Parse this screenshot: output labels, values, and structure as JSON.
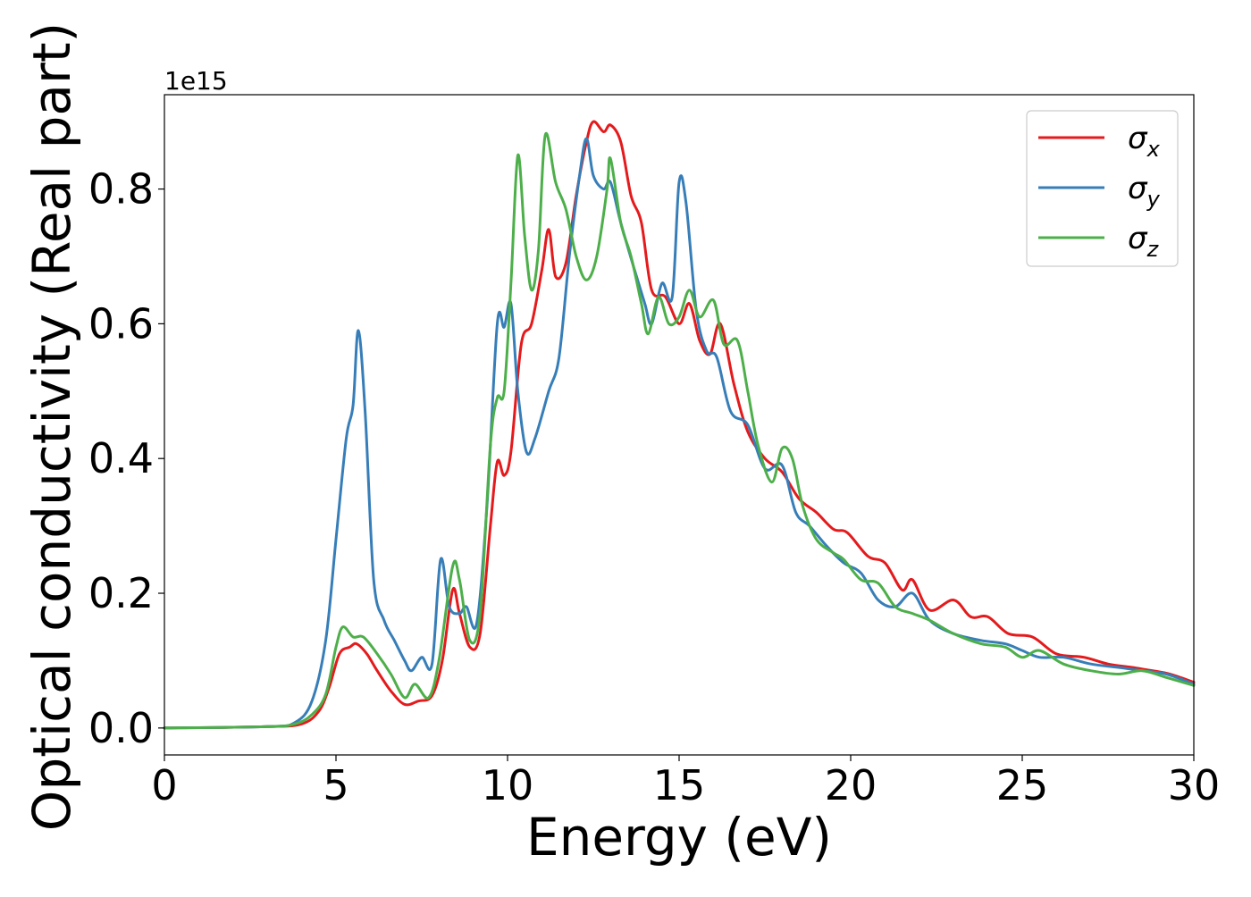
{
  "chart_data": {
    "type": "line",
    "xlabel": "Energy (eV)",
    "ylabel": "Optical conductivity (Real part)",
    "y_offset_text": "1e15",
    "xlim": [
      0,
      30
    ],
    "ylim": [
      -0.04,
      0.94
    ],
    "x_ticks": [
      0,
      5,
      10,
      15,
      20,
      25,
      30
    ],
    "x_tick_labels": [
      "0",
      "5",
      "10",
      "15",
      "20",
      "25",
      "30"
    ],
    "y_ticks": [
      0.0,
      0.2,
      0.4,
      0.6,
      0.8
    ],
    "y_tick_labels": [
      "0.0",
      "0.2",
      "0.4",
      "0.6",
      "0.8"
    ],
    "grid": false,
    "legend_position": "top-right",
    "series": [
      {
        "name": "σx",
        "symbol": "σ",
        "subscript": "x",
        "color": "#e41a1c",
        "points": [
          [
            0,
            0
          ],
          [
            3,
            0.002
          ],
          [
            4,
            0.006
          ],
          [
            4.5,
            0.025
          ],
          [
            4.8,
            0.06
          ],
          [
            5.1,
            0.11
          ],
          [
            5.4,
            0.12
          ],
          [
            5.6,
            0.125
          ],
          [
            5.9,
            0.11
          ],
          [
            6.2,
            0.085
          ],
          [
            6.6,
            0.055
          ],
          [
            7.0,
            0.035
          ],
          [
            7.4,
            0.04
          ],
          [
            7.8,
            0.048
          ],
          [
            8.1,
            0.1
          ],
          [
            8.4,
            0.205
          ],
          [
            8.6,
            0.17
          ],
          [
            8.9,
            0.12
          ],
          [
            9.2,
            0.14
          ],
          [
            9.5,
            0.3
          ],
          [
            9.7,
            0.395
          ],
          [
            9.9,
            0.375
          ],
          [
            10.1,
            0.41
          ],
          [
            10.4,
            0.57
          ],
          [
            10.7,
            0.6
          ],
          [
            11.0,
            0.68
          ],
          [
            11.2,
            0.74
          ],
          [
            11.4,
            0.67
          ],
          [
            11.7,
            0.69
          ],
          [
            12.0,
            0.79
          ],
          [
            12.3,
            0.87
          ],
          [
            12.5,
            0.9
          ],
          [
            12.8,
            0.885
          ],
          [
            13.0,
            0.895
          ],
          [
            13.3,
            0.87
          ],
          [
            13.6,
            0.79
          ],
          [
            13.9,
            0.75
          ],
          [
            14.2,
            0.65
          ],
          [
            14.6,
            0.64
          ],
          [
            15.0,
            0.6
          ],
          [
            15.3,
            0.63
          ],
          [
            15.6,
            0.575
          ],
          [
            15.9,
            0.555
          ],
          [
            16.2,
            0.6
          ],
          [
            16.6,
            0.51
          ],
          [
            17.0,
            0.44
          ],
          [
            17.5,
            0.4
          ],
          [
            18.0,
            0.38
          ],
          [
            18.5,
            0.34
          ],
          [
            19.0,
            0.32
          ],
          [
            19.5,
            0.295
          ],
          [
            19.9,
            0.29
          ],
          [
            20.5,
            0.255
          ],
          [
            21.0,
            0.245
          ],
          [
            21.5,
            0.205
          ],
          [
            21.8,
            0.22
          ],
          [
            22.3,
            0.175
          ],
          [
            23.0,
            0.19
          ],
          [
            23.5,
            0.165
          ],
          [
            24.0,
            0.165
          ],
          [
            24.6,
            0.14
          ],
          [
            25.3,
            0.135
          ],
          [
            26.0,
            0.11
          ],
          [
            26.8,
            0.105
          ],
          [
            27.5,
            0.095
          ],
          [
            28.2,
            0.09
          ],
          [
            28.8,
            0.085
          ],
          [
            29.3,
            0.08
          ],
          [
            30,
            0.068
          ]
        ]
      },
      {
        "name": "σy",
        "symbol": "σ",
        "subscript": "y",
        "color": "#377eb8",
        "points": [
          [
            0,
            0
          ],
          [
            3,
            0.002
          ],
          [
            3.8,
            0.008
          ],
          [
            4.3,
            0.04
          ],
          [
            4.7,
            0.13
          ],
          [
            5.0,
            0.28
          ],
          [
            5.3,
            0.43
          ],
          [
            5.5,
            0.48
          ],
          [
            5.65,
            0.59
          ],
          [
            5.85,
            0.47
          ],
          [
            6.1,
            0.22
          ],
          [
            6.4,
            0.16
          ],
          [
            6.7,
            0.13
          ],
          [
            7.0,
            0.1
          ],
          [
            7.2,
            0.085
          ],
          [
            7.5,
            0.105
          ],
          [
            7.8,
            0.095
          ],
          [
            8.05,
            0.25
          ],
          [
            8.3,
            0.18
          ],
          [
            8.6,
            0.17
          ],
          [
            8.8,
            0.18
          ],
          [
            9.1,
            0.155
          ],
          [
            9.4,
            0.33
          ],
          [
            9.7,
            0.6
          ],
          [
            9.9,
            0.595
          ],
          [
            10.1,
            0.63
          ],
          [
            10.3,
            0.5
          ],
          [
            10.55,
            0.41
          ],
          [
            10.8,
            0.43
          ],
          [
            11.2,
            0.5
          ],
          [
            11.5,
            0.55
          ],
          [
            11.8,
            0.7
          ],
          [
            12.1,
            0.82
          ],
          [
            12.3,
            0.875
          ],
          [
            12.5,
            0.82
          ],
          [
            12.8,
            0.8
          ],
          [
            13.0,
            0.81
          ],
          [
            13.3,
            0.75
          ],
          [
            13.7,
            0.68
          ],
          [
            14.0,
            0.63
          ],
          [
            14.2,
            0.6
          ],
          [
            14.5,
            0.66
          ],
          [
            14.8,
            0.64
          ],
          [
            15.0,
            0.81
          ],
          [
            15.2,
            0.78
          ],
          [
            15.5,
            0.62
          ],
          [
            15.8,
            0.56
          ],
          [
            16.1,
            0.55
          ],
          [
            16.5,
            0.47
          ],
          [
            17.0,
            0.45
          ],
          [
            17.5,
            0.385
          ],
          [
            18.0,
            0.39
          ],
          [
            18.4,
            0.32
          ],
          [
            18.8,
            0.3
          ],
          [
            19.3,
            0.27
          ],
          [
            19.8,
            0.245
          ],
          [
            20.3,
            0.23
          ],
          [
            20.8,
            0.19
          ],
          [
            21.3,
            0.18
          ],
          [
            21.8,
            0.2
          ],
          [
            22.3,
            0.16
          ],
          [
            23.0,
            0.14
          ],
          [
            23.8,
            0.13
          ],
          [
            24.5,
            0.125
          ],
          [
            25.0,
            0.115
          ],
          [
            25.5,
            0.105
          ],
          [
            26.2,
            0.105
          ],
          [
            27.0,
            0.095
          ],
          [
            27.8,
            0.09
          ],
          [
            28.5,
            0.085
          ],
          [
            29.2,
            0.08
          ],
          [
            30,
            0.065
          ]
        ]
      },
      {
        "name": "σz",
        "symbol": "σ",
        "subscript": "z",
        "color": "#4daf4a",
        "points": [
          [
            0,
            0
          ],
          [
            3,
            0.002
          ],
          [
            3.8,
            0.006
          ],
          [
            4.3,
            0.02
          ],
          [
            4.7,
            0.05
          ],
          [
            5.0,
            0.12
          ],
          [
            5.2,
            0.15
          ],
          [
            5.5,
            0.135
          ],
          [
            5.8,
            0.135
          ],
          [
            6.2,
            0.11
          ],
          [
            6.6,
            0.08
          ],
          [
            7.0,
            0.045
          ],
          [
            7.3,
            0.065
          ],
          [
            7.7,
            0.045
          ],
          [
            8.0,
            0.1
          ],
          [
            8.4,
            0.24
          ],
          [
            8.6,
            0.22
          ],
          [
            8.9,
            0.13
          ],
          [
            9.2,
            0.17
          ],
          [
            9.5,
            0.42
          ],
          [
            9.7,
            0.49
          ],
          [
            9.9,
            0.5
          ],
          [
            10.1,
            0.66
          ],
          [
            10.3,
            0.85
          ],
          [
            10.5,
            0.73
          ],
          [
            10.7,
            0.65
          ],
          [
            10.9,
            0.71
          ],
          [
            11.1,
            0.88
          ],
          [
            11.4,
            0.81
          ],
          [
            11.7,
            0.77
          ],
          [
            12.0,
            0.7
          ],
          [
            12.3,
            0.665
          ],
          [
            12.6,
            0.7
          ],
          [
            12.9,
            0.8
          ],
          [
            13.0,
            0.845
          ],
          [
            13.3,
            0.75
          ],
          [
            13.6,
            0.7
          ],
          [
            13.9,
            0.63
          ],
          [
            14.1,
            0.585
          ],
          [
            14.4,
            0.64
          ],
          [
            14.7,
            0.6
          ],
          [
            15.0,
            0.61
          ],
          [
            15.3,
            0.65
          ],
          [
            15.6,
            0.61
          ],
          [
            16.0,
            0.635
          ],
          [
            16.3,
            0.57
          ],
          [
            16.7,
            0.575
          ],
          [
            17.0,
            0.5
          ],
          [
            17.3,
            0.42
          ],
          [
            17.7,
            0.365
          ],
          [
            18.0,
            0.415
          ],
          [
            18.3,
            0.4
          ],
          [
            18.6,
            0.33
          ],
          [
            19.0,
            0.28
          ],
          [
            19.5,
            0.26
          ],
          [
            19.8,
            0.25
          ],
          [
            20.3,
            0.22
          ],
          [
            20.8,
            0.215
          ],
          [
            21.3,
            0.18
          ],
          [
            21.8,
            0.17
          ],
          [
            22.3,
            0.16
          ],
          [
            23.0,
            0.14
          ],
          [
            23.8,
            0.125
          ],
          [
            24.5,
            0.12
          ],
          [
            25.0,
            0.105
          ],
          [
            25.5,
            0.115
          ],
          [
            26.2,
            0.095
          ],
          [
            27.0,
            0.085
          ],
          [
            27.8,
            0.08
          ],
          [
            28.5,
            0.085
          ],
          [
            29.2,
            0.075
          ],
          [
            30,
            0.063
          ]
        ]
      }
    ]
  }
}
